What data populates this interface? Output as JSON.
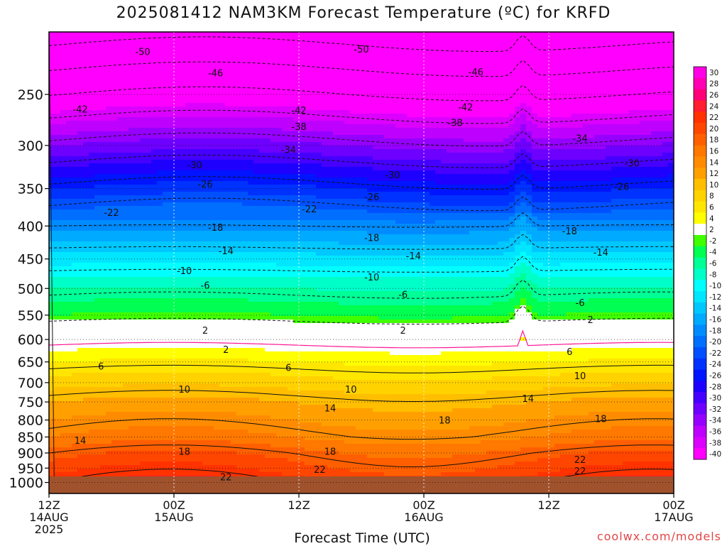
{
  "title": "2025081412 NAM3KM Forecast Temperature (ºC) for KRFD",
  "xlabel": "Forecast Time (UTC)",
  "credit": "coolwx.com/models",
  "chart_data": {
    "type": "heatmap",
    "title": "2025081412 NAM3KM Forecast Temperature (ºC) for KRFD",
    "xlabel": "Forecast Time (UTC)",
    "ylabel": "",
    "x_axis": {
      "range_hours": [
        0,
        60
      ],
      "ticks": [
        {
          "hour": 0,
          "lines": [
            "12Z",
            "14AUG",
            "2025"
          ]
        },
        {
          "hour": 12,
          "lines": [
            "00Z",
            "15AUG"
          ]
        },
        {
          "hour": 24,
          "lines": [
            "12Z"
          ]
        },
        {
          "hour": 36,
          "lines": [
            "00Z",
            "16AUG"
          ]
        },
        {
          "hour": 48,
          "lines": [
            "12Z"
          ]
        },
        {
          "hour": 60,
          "lines": [
            "00Z",
            "17AUG"
          ]
        }
      ]
    },
    "y_axis": {
      "scale": "log",
      "direction": "pressure-decreasing-upward",
      "range_hPa": [
        1040,
        200
      ],
      "ticks": [
        250,
        300,
        350,
        400,
        450,
        500,
        550,
        600,
        650,
        700,
        750,
        800,
        850,
        900,
        950,
        1000
      ]
    },
    "grid": true,
    "colorbar": {
      "placement": "right",
      "labels": [
        "30",
        "28",
        "26",
        "24",
        "22",
        "20",
        "18",
        "16",
        "14",
        "12",
        "10",
        "8",
        "6",
        "4",
        "2",
        "-2",
        "-4",
        "-6",
        "-8",
        "-10",
        "-12",
        "-14",
        "-16",
        "-18",
        "-20",
        "-22",
        "-24",
        "-26",
        "-28",
        "-30",
        "-32",
        "-34",
        "-36",
        "-38",
        "-40"
      ],
      "colors": [
        "#ff00e6",
        "#ff00b4",
        "#ff0078",
        "#ff1e32",
        "#ff3200",
        "#ff4600",
        "#ff5f00",
        "#ff7800",
        "#ff8c00",
        "#ffa000",
        "#ffbe00",
        "#ffd200",
        "#ffe600",
        "#ffff00",
        "#ffffff",
        "#40ff00",
        "#00ff50",
        "#00ff96",
        "#00ffc8",
        "#00ffff",
        "#00e6ff",
        "#00c8ff",
        "#00aaff",
        "#008cff",
        "#006eff",
        "#0050ff",
        "#0032ff",
        "#0014ff",
        "#1e00ff",
        "#4600ff",
        "#6e00ff",
        "#9600ff",
        "#be00ff",
        "#dc00ff",
        "#ff00ff"
      ]
    },
    "profile": [
      {
        "p": 1000,
        "t": 22
      },
      {
        "p": 950,
        "t": 20
      },
      {
        "p": 900,
        "t": 18
      },
      {
        "p": 850,
        "t": 15
      },
      {
        "p": 800,
        "t": 13
      },
      {
        "p": 750,
        "t": 11
      },
      {
        "p": 700,
        "t": 8
      },
      {
        "p": 650,
        "t": 5
      },
      {
        "p": 600,
        "t": 1
      },
      {
        "p": 550,
        "t": -3
      },
      {
        "p": 500,
        "t": -7
      },
      {
        "p": 450,
        "t": -12
      },
      {
        "p": 400,
        "t": -18
      },
      {
        "p": 350,
        "t": -25
      },
      {
        "p": 300,
        "t": -33
      },
      {
        "p": 250,
        "t": -42
      },
      {
        "p": 200,
        "t": -52
      }
    ],
    "contour_labels": [
      {
        "value": "-50",
        "hour": 9,
        "p": 215
      },
      {
        "value": "-50",
        "hour": 30,
        "p": 213
      },
      {
        "value": "-46",
        "hour": 16,
        "p": 232
      },
      {
        "value": "-46",
        "hour": 41,
        "p": 231
      },
      {
        "value": "-42",
        "hour": 3,
        "p": 264
      },
      {
        "value": "-42",
        "hour": 24,
        "p": 265
      },
      {
        "value": "-42",
        "hour": 40,
        "p": 262
      },
      {
        "value": "-38",
        "hour": 24,
        "p": 281
      },
      {
        "value": "-38",
        "hour": 39,
        "p": 277
      },
      {
        "value": "-34",
        "hour": 23,
        "p": 305
      },
      {
        "value": "-34",
        "hour": 51,
        "p": 293
      },
      {
        "value": "-30",
        "hour": 14,
        "p": 322
      },
      {
        "value": "-30",
        "hour": 33,
        "p": 334
      },
      {
        "value": "-30",
        "hour": 56,
        "p": 320
      },
      {
        "value": "-26",
        "hour": 15,
        "p": 345
      },
      {
        "value": "-26",
        "hour": 31,
        "p": 361
      },
      {
        "value": "-26",
        "hour": 55,
        "p": 348
      },
      {
        "value": "-22",
        "hour": 6,
        "p": 382
      },
      {
        "value": "-22",
        "hour": 25,
        "p": 377
      },
      {
        "value": "-18",
        "hour": 16,
        "p": 403
      },
      {
        "value": "-18",
        "hour": 31,
        "p": 418
      },
      {
        "value": "-18",
        "hour": 50,
        "p": 408
      },
      {
        "value": "-14",
        "hour": 17,
        "p": 438
      },
      {
        "value": "-14",
        "hour": 35,
        "p": 446
      },
      {
        "value": "-14",
        "hour": 53,
        "p": 440
      },
      {
        "value": "-10",
        "hour": 13,
        "p": 470
      },
      {
        "value": "-10",
        "hour": 31,
        "p": 481
      },
      {
        "value": "-6",
        "hour": 15,
        "p": 495
      },
      {
        "value": "-6",
        "hour": 34,
        "p": 512
      },
      {
        "value": "-6",
        "hour": 51,
        "p": 527
      },
      {
        "value": "2",
        "hour": 52,
        "p": 560
      },
      {
        "value": "2",
        "hour": 15,
        "p": 582
      },
      {
        "value": "2",
        "hour": 34,
        "p": 582
      },
      {
        "value": "2",
        "hour": 17,
        "p": 623
      },
      {
        "value": "6",
        "hour": 5,
        "p": 661
      },
      {
        "value": "6",
        "hour": 23,
        "p": 665
      },
      {
        "value": "6",
        "hour": 50,
        "p": 628
      },
      {
        "value": "10",
        "hour": 13,
        "p": 718
      },
      {
        "value": "10",
        "hour": 29,
        "p": 718
      },
      {
        "value": "10",
        "hour": 51,
        "p": 684
      },
      {
        "value": "14",
        "hour": 27,
        "p": 768
      },
      {
        "value": "14",
        "hour": 46,
        "p": 742
      },
      {
        "value": "14",
        "hour": 3,
        "p": 862
      },
      {
        "value": "18",
        "hour": 38,
        "p": 802
      },
      {
        "value": "18",
        "hour": 53,
        "p": 798
      },
      {
        "value": "18",
        "hour": 13,
        "p": 897
      },
      {
        "value": "18",
        "hour": 27,
        "p": 897
      },
      {
        "value": "22",
        "hour": 51,
        "p": 923
      },
      {
        "value": "22",
        "hour": 26,
        "p": 956
      },
      {
        "value": "22",
        "hour": 51,
        "p": 961
      },
      {
        "value": "22",
        "hour": 17,
        "p": 982
      }
    ]
  }
}
